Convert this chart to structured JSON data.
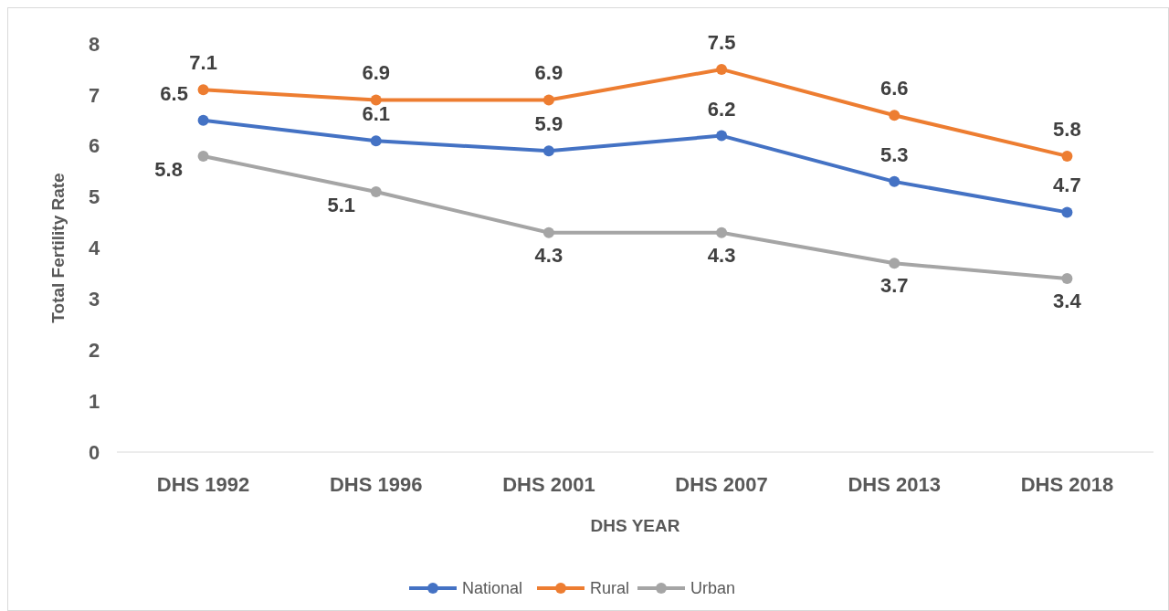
{
  "chart_data": {
    "type": "line",
    "xlabel": "DHS YEAR",
    "ylabel": "Total Fertility Rate",
    "categories": [
      "DHS 1992",
      "DHS 1996",
      "DHS 2001",
      "DHS 2007",
      "DHS 2013",
      "DHS 2018"
    ],
    "series": [
      {
        "name": "National",
        "color": "#4472c4",
        "values": [
          6.5,
          6.1,
          5.9,
          6.2,
          5.3,
          4.7
        ]
      },
      {
        "name": "Rural",
        "color": "#ed7d31",
        "values": [
          7.1,
          6.9,
          6.9,
          7.5,
          6.6,
          5.8
        ]
      },
      {
        "name": "Urban",
        "color": "#a5a5a5",
        "values": [
          5.8,
          5.1,
          4.3,
          4.3,
          3.7,
          3.4
        ]
      }
    ],
    "ylim": [
      0,
      8
    ],
    "yticks": [
      0,
      1,
      2,
      3,
      4,
      5,
      6,
      7,
      8
    ],
    "grid": false,
    "legend": "bottom",
    "marker": "circle",
    "line_style": "solid",
    "data_labels": true
  }
}
